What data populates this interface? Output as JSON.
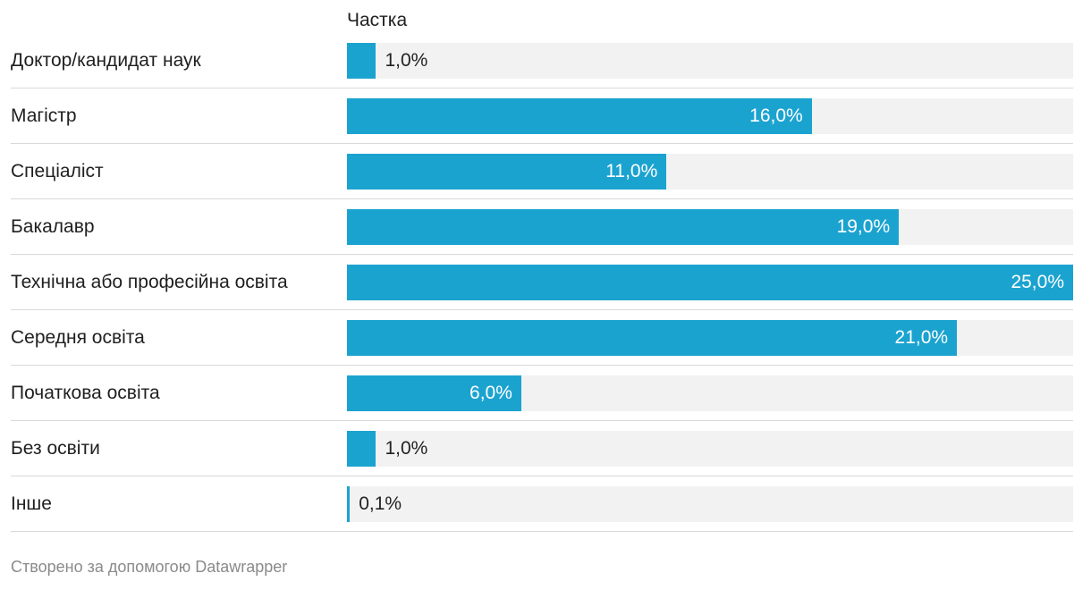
{
  "header": {
    "column_title": "Частка"
  },
  "footer": {
    "credit": "Створено за допомогою Datawrapper"
  },
  "colors": {
    "bar": "#1ba3d0",
    "track": "#f2f2f2"
  },
  "chart_data": {
    "type": "bar",
    "orientation": "horizontal",
    "title": "",
    "column_header": "Частка",
    "xlim": [
      0,
      25
    ],
    "categories": [
      "Доктор/кандидат наук",
      "Магістр",
      "Спеціаліст",
      "Бакалавр",
      "Технічна або професійна освіта",
      "Середня освіта",
      "Початкова освіта",
      "Без освіти",
      "Інше"
    ],
    "values": [
      1.0,
      16.0,
      11.0,
      19.0,
      25.0,
      21.0,
      6.0,
      1.0,
      0.1
    ],
    "value_labels": [
      "1,0%",
      "16,0%",
      "11,0%",
      "19,0%",
      "25,0%",
      "21,0%",
      "6,0%",
      "1,0%",
      "0,1%"
    ]
  }
}
